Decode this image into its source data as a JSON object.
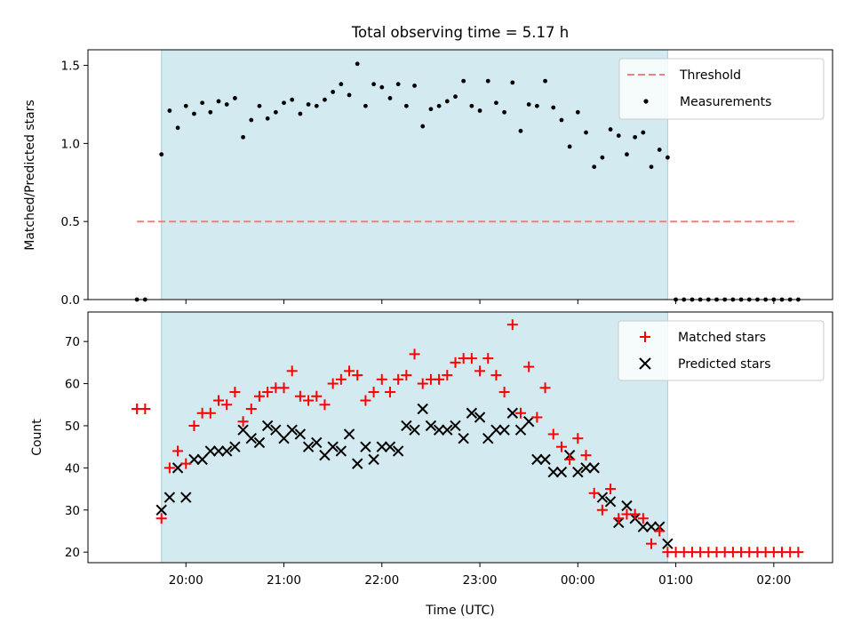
{
  "chart_data": [
    {
      "type": "scatter",
      "title": "Total observing time = 5.17 h",
      "ylabel": "Matched/Predicted stars",
      "xlabel": "",
      "ylim": [
        0,
        1.6
      ],
      "yticks": [
        "0.0",
        "0.5",
        "1.0",
        "1.5"
      ],
      "x_unit": "hours",
      "xlim": [
        19.0,
        2.6
      ],
      "observing_window": {
        "start": "19:45",
        "end": "00:55",
        "color": "#add8e6"
      },
      "threshold": {
        "name": "Threshold",
        "value": 0.5,
        "x_start": "19:30",
        "x_end": "02:15",
        "color": "#f08080"
      },
      "series": [
        {
          "name": "Measurements",
          "color": "#000000",
          "x": [
            "19:30",
            "19:35",
            "19:45",
            "19:50",
            "19:55",
            "20:00",
            "20:05",
            "20:10",
            "20:15",
            "20:20",
            "20:25",
            "20:30",
            "20:35",
            "20:40",
            "20:45",
            "20:50",
            "20:55",
            "21:00",
            "21:05",
            "21:10",
            "21:15",
            "21:20",
            "21:25",
            "21:30",
            "21:35",
            "21:40",
            "21:45",
            "21:50",
            "21:55",
            "22:00",
            "22:05",
            "22:10",
            "22:15",
            "22:20",
            "22:25",
            "22:30",
            "22:35",
            "22:40",
            "22:45",
            "22:50",
            "22:55",
            "23:00",
            "23:05",
            "23:10",
            "23:15",
            "23:20",
            "23:25",
            "23:30",
            "23:35",
            "23:40",
            "23:45",
            "23:50",
            "23:55",
            "00:00",
            "00:05",
            "00:10",
            "00:15",
            "00:20",
            "00:25",
            "00:30",
            "00:35",
            "00:40",
            "00:45",
            "00:50",
            "00:55",
            "01:00",
            "01:05",
            "01:10",
            "01:15",
            "01:20",
            "01:25",
            "01:30",
            "01:35",
            "01:40",
            "01:45",
            "01:50",
            "01:55",
            "02:00",
            "02:05",
            "02:10",
            "02:15"
          ],
          "y": [
            0.0,
            0.0,
            0.93,
            1.21,
            1.1,
            1.24,
            1.19,
            1.26,
            1.2,
            1.27,
            1.25,
            1.29,
            1.04,
            1.15,
            1.24,
            1.16,
            1.2,
            1.26,
            1.28,
            1.19,
            1.25,
            1.24,
            1.28,
            1.33,
            1.38,
            1.31,
            1.51,
            1.24,
            1.38,
            1.36,
            1.29,
            1.38,
            1.24,
            1.37,
            1.11,
            1.22,
            1.24,
            1.27,
            1.3,
            1.4,
            1.24,
            1.21,
            1.4,
            1.26,
            1.2,
            1.39,
            1.08,
            1.25,
            1.24,
            1.4,
            1.23,
            1.15,
            0.98,
            1.2,
            1.07,
            0.85,
            0.91,
            1.09,
            1.05,
            0.93,
            1.04,
            1.07,
            0.85,
            0.96,
            0.91,
            0.0,
            0.0,
            0.0,
            0.0,
            0.0,
            0.0,
            0.0,
            0.0,
            0.0,
            0.0,
            0.0,
            0.0,
            0.0,
            0.0,
            0.0,
            0.0
          ]
        }
      ],
      "legend": {
        "position": "upper right",
        "entries": [
          "Threshold",
          "Measurements"
        ]
      }
    },
    {
      "type": "scatter",
      "xlabel": "Time (UTC)",
      "ylabel": "Count",
      "ylim": [
        17.5,
        77
      ],
      "yticks": [
        "20",
        "30",
        "40",
        "50",
        "60",
        "70"
      ],
      "xticks": [
        "20:00",
        "21:00",
        "22:00",
        "23:00",
        "00:00",
        "01:00",
        "02:00"
      ],
      "observing_window": {
        "start": "19:45",
        "end": "00:55",
        "color": "#add8e6"
      },
      "series": [
        {
          "name": "Matched stars",
          "marker": "+",
          "color": "#ff0000",
          "x": [
            "19:30",
            "19:35",
            "19:45",
            "19:50",
            "19:55",
            "20:00",
            "20:05",
            "20:10",
            "20:15",
            "20:20",
            "20:25",
            "20:30",
            "20:35",
            "20:40",
            "20:45",
            "20:50",
            "20:55",
            "21:00",
            "21:05",
            "21:10",
            "21:15",
            "21:20",
            "21:25",
            "21:30",
            "21:35",
            "21:40",
            "21:45",
            "21:50",
            "21:55",
            "22:00",
            "22:05",
            "22:10",
            "22:15",
            "22:20",
            "22:25",
            "22:30",
            "22:35",
            "22:40",
            "22:45",
            "22:50",
            "22:55",
            "23:00",
            "23:05",
            "23:10",
            "23:15",
            "23:20",
            "23:25",
            "23:30",
            "23:35",
            "23:40",
            "23:45",
            "23:50",
            "23:55",
            "00:00",
            "00:05",
            "00:10",
            "00:15",
            "00:20",
            "00:25",
            "00:30",
            "00:35",
            "00:40",
            "00:45",
            "00:50",
            "00:55",
            "01:00",
            "01:05",
            "01:10",
            "01:15",
            "01:20",
            "01:25",
            "01:30",
            "01:35",
            "01:40",
            "01:45",
            "01:50",
            "01:55",
            "02:00",
            "02:05",
            "02:10",
            "02:15"
          ],
          "y": [
            54,
            54,
            28,
            40,
            44,
            41,
            50,
            53,
            53,
            56,
            55,
            58,
            51,
            54,
            57,
            58,
            59,
            59,
            63,
            57,
            56,
            57,
            55,
            60,
            61,
            63,
            62,
            56,
            58,
            61,
            58,
            61,
            62,
            67,
            60,
            61,
            61,
            62,
            65,
            66,
            66,
            63,
            66,
            62,
            58,
            74,
            53,
            64,
            52,
            59,
            48,
            45,
            42,
            47,
            43,
            34,
            30,
            35,
            28,
            29,
            29,
            28,
            22,
            25,
            20,
            20,
            20,
            20,
            20,
            20,
            20,
            20,
            20,
            20,
            20,
            20,
            20,
            20,
            20,
            20,
            20
          ]
        },
        {
          "name": "Predicted stars",
          "marker": "x",
          "color": "#000000",
          "x": [
            "19:45",
            "19:50",
            "19:55",
            "20:00",
            "20:05",
            "20:10",
            "20:15",
            "20:20",
            "20:25",
            "20:30",
            "20:35",
            "20:40",
            "20:45",
            "20:50",
            "20:55",
            "21:00",
            "21:05",
            "21:10",
            "21:15",
            "21:20",
            "21:25",
            "21:30",
            "21:35",
            "21:40",
            "21:45",
            "21:50",
            "21:55",
            "22:00",
            "22:05",
            "22:10",
            "22:15",
            "22:20",
            "22:25",
            "22:30",
            "22:35",
            "22:40",
            "22:45",
            "22:50",
            "22:55",
            "23:00",
            "23:05",
            "23:10",
            "23:15",
            "23:20",
            "23:25",
            "23:30",
            "23:35",
            "23:40",
            "23:45",
            "23:50",
            "23:55",
            "00:00",
            "00:05",
            "00:10",
            "00:15",
            "00:20",
            "00:25",
            "00:30",
            "00:35",
            "00:40",
            "00:45",
            "00:50",
            "00:55"
          ],
          "y": [
            30,
            33,
            40,
            33,
            42,
            42,
            44,
            44,
            44,
            45,
            49,
            47,
            46,
            50,
            49,
            47,
            49,
            48,
            45,
            46,
            43,
            45,
            44,
            48,
            41,
            45,
            42,
            45,
            45,
            44,
            50,
            49,
            54,
            50,
            49,
            49,
            50,
            47,
            53,
            52,
            47,
            49,
            49,
            53,
            49,
            51,
            42,
            42,
            39,
            39,
            43,
            39,
            40,
            40,
            33,
            32,
            27,
            31,
            28,
            26,
            26,
            26,
            22
          ]
        }
      ],
      "legend": {
        "position": "upper right",
        "entries": [
          "Matched stars",
          "Predicted stars"
        ]
      }
    }
  ]
}
